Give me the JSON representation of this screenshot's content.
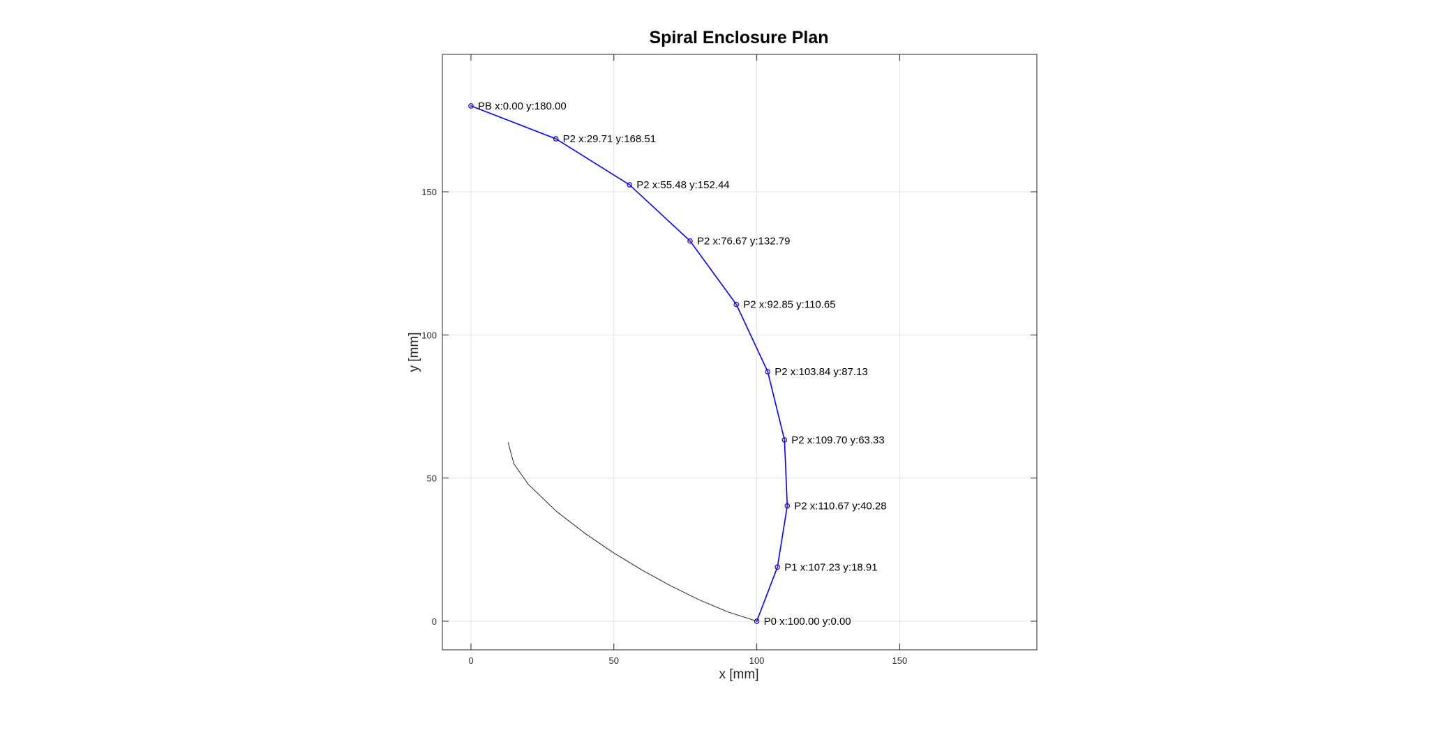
{
  "chart_data": {
    "type": "line",
    "title": "Spiral Enclosure Plan",
    "xlabel": "x [mm]",
    "ylabel": "y [mm]",
    "xlim": [
      -10,
      198
    ],
    "ylim": [
      -10,
      198
    ],
    "xticks": [
      0,
      50,
      100,
      150
    ],
    "yticks": [
      0,
      50,
      100,
      150
    ],
    "grid": true,
    "series": [
      {
        "color": "#0000ff",
        "points": [
          {
            "x": 100.0,
            "y": 0.0,
            "label": "P0 x:100.00 y:0.00"
          },
          {
            "x": 107.23,
            "y": 18.91,
            "label": "P1 x:107.23 y:18.91"
          },
          {
            "x": 110.67,
            "y": 40.28,
            "label": "P2 x:110.67 y:40.28"
          },
          {
            "x": 109.7,
            "y": 63.33,
            "label": "P2 x:109.70 y:63.33"
          },
          {
            "x": 103.84,
            "y": 87.13,
            "label": "P2 x:103.84 y:87.13"
          },
          {
            "x": 92.85,
            "y": 110.65,
            "label": "P2 x:92.85 y:110.65"
          },
          {
            "x": 76.67,
            "y": 132.79,
            "label": "P2 x:76.67 y:132.79"
          },
          {
            "x": 55.48,
            "y": 152.44,
            "label": "P2 x:55.48 y:152.44"
          },
          {
            "x": 29.71,
            "y": 168.51,
            "label": "P2 x:29.71 y:168.51"
          },
          {
            "x": 0.0,
            "y": 180.0,
            "label": "PB x:0.00 y:180.00"
          }
        ]
      },
      {
        "color": "#262626",
        "x": [
          100,
          90,
          80,
          70,
          60,
          50,
          40,
          30,
          20,
          15,
          13
        ],
        "y": [
          0,
          3.2,
          7.4,
          12.3,
          17.8,
          23.8,
          30.6,
          38.3,
          47.9,
          55.0,
          62.5
        ]
      }
    ]
  }
}
